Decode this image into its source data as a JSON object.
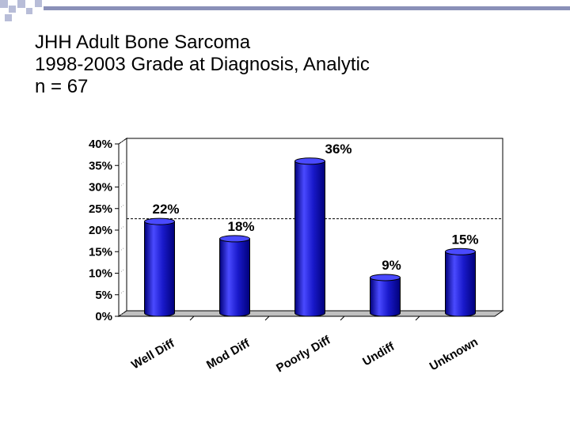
{
  "slide": {
    "title_lines": [
      "JHH Adult Bone Sarcoma",
      "1998-2003 Grade at Diagnosis, Analytic",
      "n = 67"
    ]
  },
  "colors": {
    "bar": "#1a1acc",
    "bar_dark": "#00007a",
    "bar_light": "#4a4aff",
    "deco_square": "#b8bdd8",
    "deco_bar": "#8a90b8",
    "reference_line": "#000000"
  },
  "chart_data": {
    "type": "bar",
    "style": "3d-cylinder",
    "categories": [
      "Well Diff",
      "Mod Diff",
      "Poorly Diff",
      "Undiff",
      "Unknown"
    ],
    "values": [
      22,
      18,
      36,
      9,
      15
    ],
    "data_labels": [
      "22%",
      "18%",
      "36%",
      "9%",
      "15%"
    ],
    "ylim": [
      0,
      40
    ],
    "yticks": [
      "0%",
      "5%",
      "10%",
      "15%",
      "20%",
      "25%",
      "30%",
      "35%",
      "40%"
    ],
    "ytick_values": [
      0,
      5,
      10,
      15,
      20,
      25,
      30,
      35,
      40
    ],
    "reference_line": 22,
    "grid": false,
    "legend": "none",
    "title": "",
    "xlabel": "",
    "ylabel": ""
  }
}
